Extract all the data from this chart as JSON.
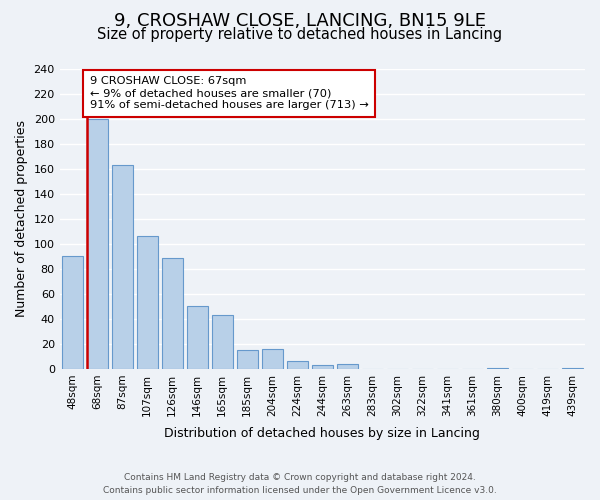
{
  "title": "9, CROSHAW CLOSE, LANCING, BN15 9LE",
  "subtitle": "Size of property relative to detached houses in Lancing",
  "xlabel": "Distribution of detached houses by size in Lancing",
  "ylabel": "Number of detached properties",
  "bar_labels": [
    "48sqm",
    "68sqm",
    "87sqm",
    "107sqm",
    "126sqm",
    "146sqm",
    "165sqm",
    "185sqm",
    "204sqm",
    "224sqm",
    "244sqm",
    "263sqm",
    "283sqm",
    "302sqm",
    "322sqm",
    "341sqm",
    "361sqm",
    "380sqm",
    "400sqm",
    "419sqm",
    "439sqm"
  ],
  "bar_values": [
    90,
    200,
    163,
    106,
    89,
    50,
    43,
    15,
    16,
    6,
    3,
    4,
    0,
    0,
    0,
    0,
    0,
    1,
    0,
    0,
    1
  ],
  "bar_color": "#b8d0e8",
  "bar_edge_color": "#6699cc",
  "vline_pos": 0.575,
  "vline_color": "#cc0000",
  "annotation_title": "9 CROSHAW CLOSE: 67sqm",
  "annotation_line1": "← 9% of detached houses are smaller (70)",
  "annotation_line2": "91% of semi-detached houses are larger (713) →",
  "annotation_box_color": "#ffffff",
  "annotation_box_edge": "#cc0000",
  "ylim": [
    0,
    240
  ],
  "yticks": [
    0,
    20,
    40,
    60,
    80,
    100,
    120,
    140,
    160,
    180,
    200,
    220,
    240
  ],
  "footer1": "Contains HM Land Registry data © Crown copyright and database right 2024.",
  "footer2": "Contains public sector information licensed under the Open Government Licence v3.0.",
  "background_color": "#eef2f7",
  "title_fontsize": 13,
  "subtitle_fontsize": 10.5
}
